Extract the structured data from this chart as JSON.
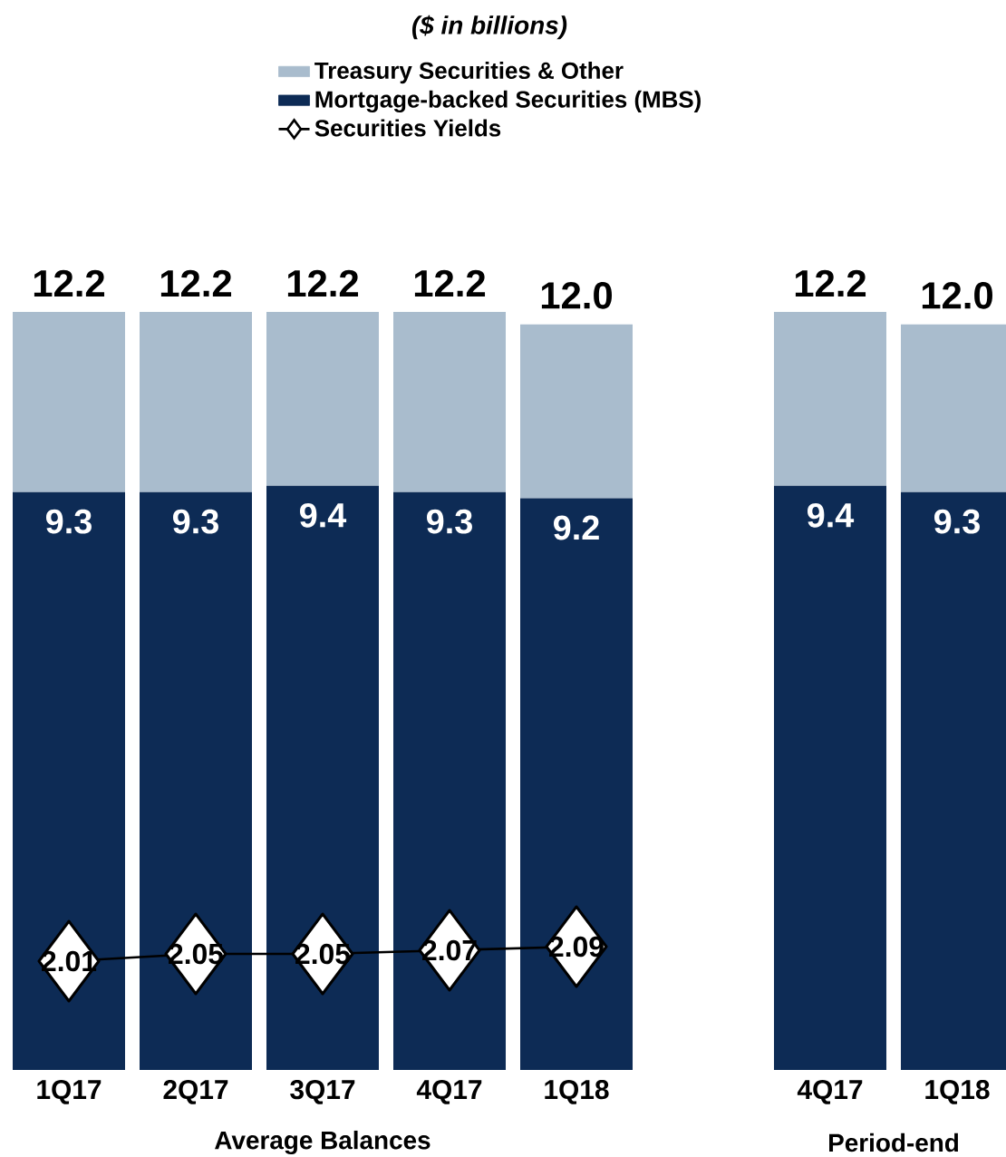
{
  "chart_data": {
    "type": "bar",
    "stacked": true,
    "title": "($ in billions)",
    "categories": [
      "1Q17",
      "2Q17",
      "3Q17",
      "4Q17",
      "1Q18",
      null,
      "4Q17",
      "1Q18"
    ],
    "series": [
      {
        "name": "Mortgage-backed Securities (MBS)",
        "color": "#0d2b55",
        "values": [
          9.3,
          9.3,
          9.4,
          9.3,
          9.2,
          null,
          9.4,
          9.3
        ],
        "value_labels": [
          "9.3",
          "9.3",
          "9.4",
          "9.3",
          "9.2",
          null,
          "9.4",
          "9.3"
        ]
      },
      {
        "name": "Treasury Securities & Other",
        "color": "#a9bccd",
        "values": [
          2.9,
          2.9,
          2.8,
          2.9,
          2.8,
          null,
          2.8,
          2.7
        ]
      },
      {
        "name": "Securities Yields",
        "type": "line",
        "axis": "y2",
        "color": "#000000",
        "marker": "diamond",
        "values": [
          2.01,
          2.05,
          2.05,
          2.07,
          2.09,
          null,
          null,
          null
        ],
        "value_labels": [
          "2.01",
          "2.05",
          "2.05",
          "2.07",
          "2.09",
          null,
          null,
          null
        ]
      }
    ],
    "totals": [
      "12.2",
      "12.2",
      "12.2",
      "12.2",
      "12.0",
      null,
      "12.2",
      "12.0"
    ],
    "tick_labels": "x",
    "legend": "top",
    "annotations": [
      "Average Balances",
      "Period-end"
    ]
  }
}
